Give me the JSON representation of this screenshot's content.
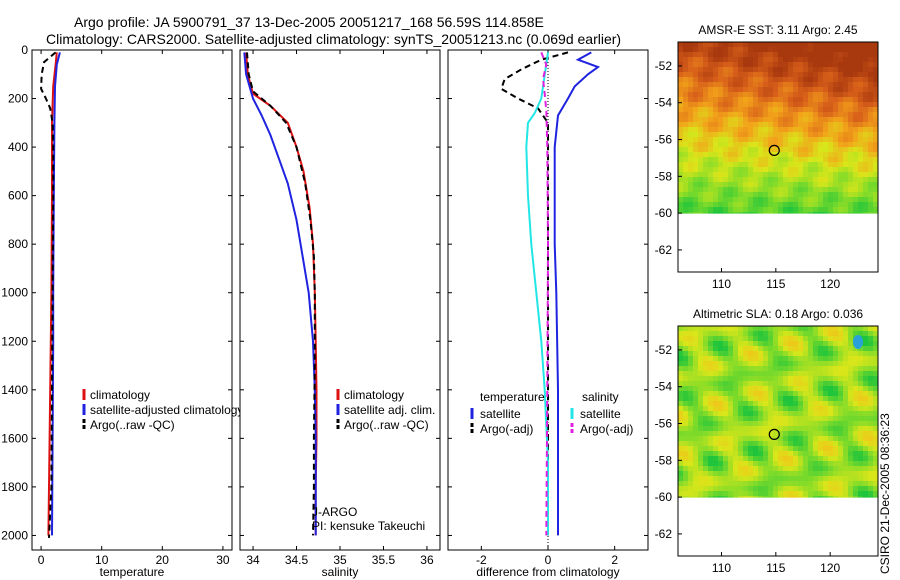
{
  "figure": {
    "title_line1": "Argo profile: JA 5900791_37 13-Dec-2005 20051217_168 56.59S 114.858E",
    "title_line2": "Climatology: CARS2000. Satellite-adjusted climatology: synTS_20051213.nc (0.069d earlier)",
    "credit": "CSIRO 21-Dec-2005 08:36:23"
  },
  "colors": {
    "climatology": "#dd1111",
    "satellite": "#1f23e0",
    "argo": "#000000",
    "satellite_salinity": "#22e6e6",
    "argo_salinity_adj": "#e020e0"
  },
  "chart_data": [
    {
      "type": "line",
      "id": "temperature",
      "xlabel": "temperature",
      "ylabel": "",
      "xlim": [
        -1.5,
        31.5
      ],
      "ylim": [
        2060,
        0
      ],
      "x_ticks": [
        0,
        10,
        20,
        30
      ],
      "y_ticks": [
        0,
        200,
        400,
        600,
        800,
        1000,
        1200,
        1400,
        1600,
        1800,
        2000
      ],
      "legend": [
        "climatology",
        "satellite-adjusted climatology",
        "Argo(..raw -QC)"
      ],
      "legend_position": "lower-center",
      "series": [
        {
          "name": "climatology",
          "color_key": "climatology",
          "dash": false,
          "x": [
            2.6,
            2.4,
            2.0,
            1.8,
            1.8,
            1.8,
            1.75,
            1.7,
            1.6,
            1.5,
            1.4,
            1.3,
            1.2
          ],
          "y": [
            10,
            60,
            150,
            300,
            450,
            600,
            800,
            1000,
            1200,
            1400,
            1600,
            1800,
            2000
          ]
        },
        {
          "name": "satellite-adjusted climatology",
          "color_key": "satellite",
          "dash": false,
          "x": [
            3.1,
            2.6,
            2.3,
            2.2,
            2.15,
            2.1,
            2.05,
            2.0,
            2.0,
            1.95,
            1.9,
            1.85,
            1.8
          ],
          "y": [
            10,
            60,
            150,
            300,
            450,
            600,
            800,
            1000,
            1200,
            1400,
            1600,
            1800,
            2000
          ]
        },
        {
          "name": "Argo(..raw -QC)",
          "color_key": "argo",
          "dash": true,
          "x": [
            2.4,
            0.5,
            0.1,
            0.0,
            0.8,
            1.5,
            1.9,
            2.0,
            2.0,
            1.95,
            1.9,
            1.85,
            1.8,
            1.75,
            1.7,
            1.5,
            1.4,
            1.3
          ],
          "y": [
            10,
            50,
            100,
            160,
            200,
            240,
            300,
            400,
            600,
            800,
            1000,
            1200,
            1400,
            1600,
            1800,
            1900,
            1960,
            2010
          ]
        }
      ]
    },
    {
      "type": "line",
      "id": "salinity",
      "xlabel": "salinity",
      "ylabel": "",
      "xlim": [
        33.85,
        36.15
      ],
      "ylim": [
        2060,
        0
      ],
      "x_ticks": [
        34,
        34.5,
        35,
        35.5,
        36
      ],
      "legend": [
        "climatology",
        "satellite adj. clim.",
        "Argo(..raw -QC)"
      ],
      "legend_position": "lower-right",
      "annotations": [
        "J-ARGO",
        "PI: kensuke Takeuchi"
      ],
      "series": [
        {
          "name": "climatology",
          "color_key": "climatology",
          "dash": false,
          "x": [
            33.92,
            33.94,
            34.0,
            34.2,
            34.4,
            34.5,
            34.58,
            34.65,
            34.69,
            34.71,
            34.72,
            34.73,
            34.73,
            34.72,
            34.72
          ],
          "y": [
            10,
            100,
            180,
            230,
            300,
            400,
            500,
            650,
            800,
            1000,
            1200,
            1400,
            1600,
            1800,
            2000
          ]
        },
        {
          "name": "satellite adj. clim.",
          "color_key": "satellite",
          "dash": false,
          "x": [
            33.9,
            33.92,
            34.0,
            34.1,
            34.2,
            34.3,
            34.4,
            34.5,
            34.57,
            34.64,
            34.69,
            34.71,
            34.72,
            34.72,
            34.72
          ],
          "y": [
            10,
            100,
            200,
            270,
            350,
            450,
            550,
            700,
            850,
            1000,
            1200,
            1400,
            1600,
            1800,
            2000
          ]
        },
        {
          "name": "Argo(..raw -QC)",
          "color_key": "argo",
          "dash": true,
          "x": [
            33.93,
            33.95,
            34.0,
            34.2,
            34.38,
            34.5,
            34.6,
            34.66,
            34.7,
            34.71,
            34.71,
            34.7,
            34.7,
            34.69
          ],
          "y": [
            10,
            100,
            170,
            230,
            300,
            400,
            550,
            700,
            850,
            1000,
            1300,
            1600,
            1800,
            2000
          ]
        }
      ]
    },
    {
      "type": "line",
      "id": "difference",
      "xlabel": "difference from climatology",
      "ylabel": "",
      "xlim": [
        -3,
        3
      ],
      "ylim": [
        2060,
        0
      ],
      "x_ticks": [
        -2,
        0,
        2
      ],
      "legend_groups": [
        {
          "title": "temperature",
          "items": [
            "satellite",
            "Argo(-adj)"
          ]
        },
        {
          "title": "salinity",
          "items": [
            "satellite",
            "Argo(-adj)"
          ]
        }
      ],
      "legend_position": "lower-center",
      "series": [
        {
          "name": "temperature satellite",
          "color_key": "satellite",
          "dash": false,
          "x": [
            1.3,
            0.9,
            1.5,
            1.2,
            0.8,
            0.6,
            0.3,
            0.2,
            0.2,
            0.2,
            0.25,
            0.3,
            0.3,
            0.3
          ],
          "y": [
            10,
            40,
            70,
            100,
            150,
            200,
            270,
            400,
            600,
            800,
            1000,
            1400,
            1800,
            2000
          ]
        },
        {
          "name": "temperature Argo(-adj)",
          "color_key": "argo",
          "dash": true,
          "x": [
            0.6,
            -0.2,
            -0.8,
            -1.3,
            -1.4,
            -0.9,
            -0.3,
            0.0,
            0.0,
            0.0,
            0.0,
            0.0
          ],
          "y": [
            10,
            40,
            80,
            120,
            160,
            200,
            240,
            300,
            600,
            1000,
            1500,
            2000
          ]
        },
        {
          "name": "salinity satellite",
          "color_key": "satellite_salinity",
          "dash": false,
          "x": [
            0.0,
            -0.2,
            -0.4,
            -0.6,
            -0.65,
            -0.6,
            -0.5,
            -0.35,
            -0.2,
            -0.1,
            0.0,
            0.0
          ],
          "y": [
            10,
            200,
            260,
            300,
            400,
            600,
            800,
            1000,
            1200,
            1400,
            1700,
            2000
          ]
        },
        {
          "name": "salinity Argo(-adj)",
          "color_key": "argo_salinity_adj",
          "dash": true,
          "x": [
            -0.2,
            -0.05,
            -0.15,
            -0.1,
            -0.05,
            -0.02,
            0.0,
            -0.02,
            -0.05
          ],
          "y": [
            10,
            60,
            120,
            180,
            250,
            400,
            800,
            1400,
            2000
          ]
        }
      ]
    },
    {
      "type": "heatmap",
      "id": "sst_map",
      "title": "AMSR-E SST: 3.11 Argo: 2.45",
      "xlim": [
        106,
        124.4
      ],
      "ylim": [
        -63.2,
        -50.7
      ],
      "x_ticks": [
        110,
        115,
        120
      ],
      "y_ticks": [
        -52,
        -54,
        -56,
        -58,
        -60,
        -62
      ],
      "data_y_range": [
        -60,
        -50.7
      ],
      "argo_position": [
        114.858,
        -56.59
      ],
      "palette": [
        "#1ec43c",
        "#7fdb2a",
        "#d9e61a",
        "#f2a21a",
        "#d8601a",
        "#a8380e"
      ]
    },
    {
      "type": "heatmap",
      "id": "sla_map",
      "title": "Altimetric SLA: 0.18 Argo: 0.036",
      "xlim": [
        106,
        124.4
      ],
      "ylim": [
        -63.2,
        -50.7
      ],
      "x_ticks": [
        110,
        115,
        120
      ],
      "y_ticks": [
        -52,
        -54,
        -56,
        -58,
        -60,
        -62
      ],
      "data_y_range": [
        -60,
        -50.7
      ],
      "argo_position": [
        114.858,
        -56.59
      ],
      "palette": [
        "#1ec43c",
        "#7fdb2a",
        "#d9e61a",
        "#f2c21a"
      ]
    }
  ]
}
